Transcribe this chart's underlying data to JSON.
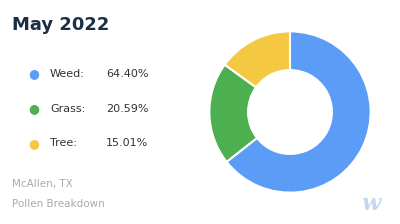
{
  "title": "May 2022",
  "title_color": "#1a2e44",
  "title_fontsize": 13,
  "title_fontweight": "bold",
  "categories": [
    "Weed",
    "Grass",
    "Tree"
  ],
  "values": [
    64.4,
    20.59,
    15.01
  ],
  "colors": [
    "#5b9cf6",
    "#4caf50",
    "#f5c842"
  ],
  "legend_labels_raw": [
    "Weed:",
    "Grass:",
    "Tree:"
  ],
  "legend_pcts": [
    "64.40%",
    "20.59%",
    "15.01%"
  ],
  "footnote_line1": "McAllen, TX",
  "footnote_line2": "Pollen Breakdown",
  "footnote_color": "#aaaaaa",
  "footnote_fontsize": 7.5,
  "background_color": "#ffffff",
  "donut_startangle": 90,
  "watermark": "w",
  "watermark_color": "#c5d8f0"
}
